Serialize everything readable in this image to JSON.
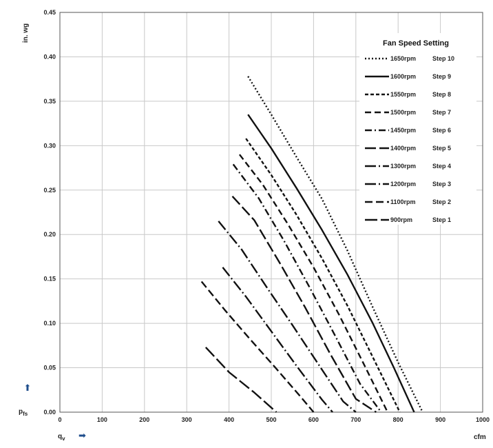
{
  "chart_data": {
    "type": "line",
    "xlabel": "q",
    "xlabel_sub": "v",
    "xunit": "cfm",
    "ylabel": "p",
    "ylabel_sub": "fs",
    "yunit": "in. wg",
    "xlim": [
      0,
      1000
    ],
    "ylim": [
      0,
      0.45
    ],
    "x_ticks": [
      "0",
      "100",
      "200",
      "300",
      "400",
      "500",
      "600",
      "700",
      "800",
      "900",
      "1000"
    ],
    "y_ticks": [
      "0.00",
      "0.05",
      "0.10",
      "0.15",
      "0.20",
      "0.25",
      "0.30",
      "0.35",
      "0.40",
      "0.45"
    ],
    "grid": true,
    "legend_title": "Fan Speed Setting",
    "legend_position": "top-right",
    "series": [
      {
        "name": "1650rpm",
        "step": "Step 10",
        "dash": "2,3",
        "x": [
          445,
          500,
          560,
          620,
          680,
          740,
          800,
          858
        ],
        "y": [
          0.378,
          0.335,
          0.287,
          0.24,
          0.182,
          0.118,
          0.056,
          0.0
        ]
      },
      {
        "name": "1600rpm",
        "step": "Step 9",
        "dash": "",
        "x": [
          445,
          500,
          560,
          620,
          680,
          740,
          790,
          838
        ],
        "y": [
          0.335,
          0.297,
          0.252,
          0.205,
          0.155,
          0.1,
          0.05,
          0.0
        ]
      },
      {
        "name": "1550rpm",
        "step": "Step 8",
        "dash": "5,3",
        "x": [
          440,
          500,
          560,
          620,
          680,
          740,
          804
        ],
        "y": [
          0.308,
          0.267,
          0.222,
          0.173,
          0.12,
          0.062,
          0.0
        ]
      },
      {
        "name": "1500rpm",
        "step": "Step 7",
        "dash": "9,5",
        "x": [
          425,
          480,
          540,
          600,
          660,
          720,
          775
        ],
        "y": [
          0.29,
          0.256,
          0.211,
          0.163,
          0.11,
          0.053,
          0.0
        ]
      },
      {
        "name": "1450rpm",
        "step": "Step 6",
        "dash": "10,4,2,4",
        "x": [
          410,
          470,
          530,
          590,
          650,
          710,
          760
        ],
        "y": [
          0.279,
          0.241,
          0.193,
          0.141,
          0.087,
          0.032,
          0.0
        ]
      },
      {
        "name": "1400rpm",
        "step": "Step 5",
        "dash": "16,5",
        "x": [
          408,
          460,
          520,
          580,
          640,
          700,
          748
        ],
        "y": [
          0.243,
          0.216,
          0.168,
          0.118,
          0.065,
          0.015,
          0.0
        ]
      },
      {
        "name": "1300rpm",
        "step": "Step 4",
        "dash": "16,4,2,4",
        "x": [
          375,
          430,
          490,
          550,
          610,
          670,
          700
        ],
        "y": [
          0.215,
          0.183,
          0.14,
          0.098,
          0.055,
          0.012,
          0.0
        ]
      },
      {
        "name": "1200rpm",
        "step": "Step 3",
        "dash": "16,4,2,4",
        "x": [
          385,
          440,
          500,
          560,
          620,
          645
        ],
        "y": [
          0.163,
          0.13,
          0.091,
          0.052,
          0.014,
          0.0
        ]
      },
      {
        "name": "1100rpm",
        "step": "Step 2",
        "dash": "11,5",
        "x": [
          335,
          390,
          450,
          510,
          570,
          600
        ],
        "y": [
          0.147,
          0.115,
          0.082,
          0.05,
          0.017,
          0.0
        ]
      },
      {
        "name": "900rpm",
        "step": "Step 1",
        "dash": "18,5",
        "x": [
          345,
          400,
          460,
          512
        ],
        "y": [
          0.073,
          0.045,
          0.022,
          0.0
        ]
      }
    ]
  }
}
